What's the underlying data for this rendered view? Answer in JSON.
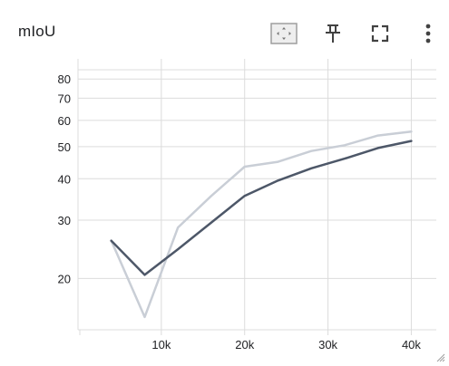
{
  "card": {
    "title": "mIoU"
  },
  "toolbar": {
    "icons": [
      "fit-domain-icon",
      "pin-icon",
      "fullscreen-icon",
      "more-vert-icon"
    ]
  },
  "chart_data": {
    "type": "line",
    "title": "",
    "xlabel": "",
    "ylabel": "",
    "y_scale": "log",
    "xlim": [
      0,
      43000
    ],
    "ylim": [
      14,
      92
    ],
    "x_ticks": [
      10000,
      20000,
      30000,
      40000
    ],
    "x_tick_labels": [
      "10k",
      "20k",
      "30k",
      "40k"
    ],
    "y_ticks": [
      20,
      30,
      40,
      50,
      60,
      70,
      80
    ],
    "y_tick_labels": [
      "20",
      "30",
      "40",
      "50",
      "60",
      "70",
      "80"
    ],
    "grid": true,
    "legend": "none",
    "series": [
      {
        "color": "#c9ced6",
        "x": [
          4000,
          8000,
          12000,
          16000,
          20000,
          24000,
          28000,
          32000,
          36000,
          40000
        ],
        "y": [
          26,
          15.3,
          28.5,
          35.5,
          43.5,
          45,
          48.5,
          50.5,
          54,
          55.5
        ]
      },
      {
        "color": "#4d5768",
        "x": [
          4000,
          8000,
          12000,
          16000,
          20000,
          24000,
          28000,
          32000,
          36000,
          40000
        ],
        "y": [
          26,
          20.5,
          24.5,
          29.5,
          35.5,
          39.5,
          43,
          46,
          49.5,
          52
        ]
      }
    ]
  }
}
